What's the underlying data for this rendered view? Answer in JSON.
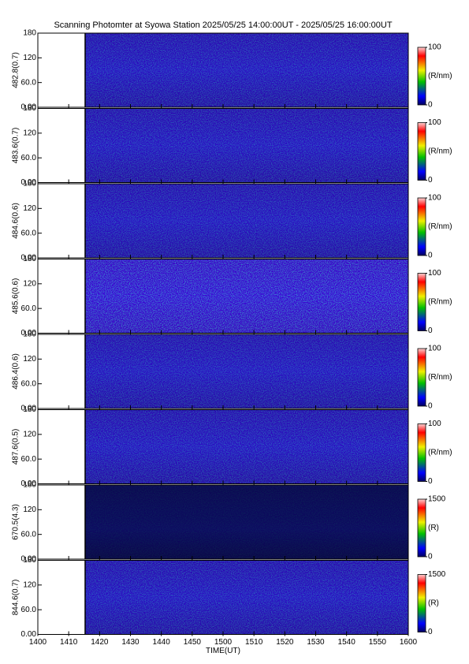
{
  "chart_data": [
    {
      "type": "heatmap",
      "title": "Scanning Photomter at Syowa Station 2025/05/25 14:00:00UT - 2025/05/25 16:00:00UT",
      "ylabel": "482.8(0.7)",
      "ylim": [
        0,
        180
      ],
      "yticks": [
        {
          "value": 0,
          "label": "0.00"
        },
        {
          "value": 60,
          "label": "60.0"
        },
        120,
        180
      ],
      "colorbar": {
        "unit": "(R/nm)",
        "lim": [
          0,
          100
        ],
        "ticks": [
          0,
          100
        ]
      }
    },
    {
      "type": "heatmap",
      "ylabel": "483.6(0.7)",
      "ylim": [
        0,
        180
      ],
      "yticks": [
        {
          "value": 0,
          "label": "0.00"
        },
        {
          "value": 60,
          "label": "60.0"
        },
        120,
        180
      ],
      "colorbar": {
        "unit": "(R/nm)",
        "lim": [
          0,
          100
        ],
        "ticks": [
          0,
          100
        ]
      }
    },
    {
      "type": "heatmap",
      "ylabel": "484.6(0.6)",
      "ylim": [
        0,
        180
      ],
      "yticks": [
        {
          "value": 0,
          "label": "0.00"
        },
        {
          "value": 60,
          "label": "60.0"
        },
        120,
        180
      ],
      "colorbar": {
        "unit": "(R/nm)",
        "lim": [
          0,
          100
        ],
        "ticks": [
          0,
          100
        ]
      }
    },
    {
      "type": "heatmap",
      "ylabel": "485.6(0.6)",
      "ylim": [
        0,
        180
      ],
      "yticks": [
        {
          "value": 0,
          "label": "0.00"
        },
        {
          "value": 60,
          "label": "60.0"
        },
        120,
        180
      ],
      "colorbar": {
        "unit": "(R/nm)",
        "lim": [
          0,
          100
        ],
        "ticks": [
          0,
          100
        ]
      }
    },
    {
      "type": "heatmap",
      "ylabel": "486.4(0.6)",
      "ylim": [
        0,
        180
      ],
      "yticks": [
        {
          "value": 0,
          "label": "0.00"
        },
        {
          "value": 60,
          "label": "60.0"
        },
        120,
        180
      ],
      "colorbar": {
        "unit": "(R/nm)",
        "lim": [
          0,
          100
        ],
        "ticks": [
          0,
          100
        ]
      }
    },
    {
      "type": "heatmap",
      "ylabel": "487.6(0.5)",
      "ylim": [
        0,
        180
      ],
      "yticks": [
        {
          "value": 0,
          "label": "0.00"
        },
        {
          "value": 60,
          "label": "60.0"
        },
        120,
        180
      ],
      "colorbar": {
        "unit": "(R/nm)",
        "lim": [
          0,
          100
        ],
        "ticks": [
          0,
          100
        ]
      }
    },
    {
      "type": "heatmap",
      "ylabel": "670.5(4.3)",
      "ylim": [
        0,
        180
      ],
      "yticks": [
        {
          "value": 0,
          "label": "0.00"
        },
        {
          "value": 60,
          "label": "60.0"
        },
        120,
        180
      ],
      "colorbar": {
        "unit": "(R)",
        "lim": [
          0,
          1500
        ],
        "ticks": [
          0,
          1500
        ]
      }
    },
    {
      "type": "heatmap",
      "ylabel": "844.6(0.7)",
      "ylim": [
        0,
        180
      ],
      "yticks": [
        {
          "value": 0,
          "label": "0.00"
        },
        {
          "value": 60,
          "label": "60.0"
        },
        120,
        180
      ],
      "colorbar": {
        "unit": "(R)",
        "lim": [
          0,
          1500
        ],
        "ticks": [
          0,
          1500
        ]
      },
      "xlabel": "TIME(UT)",
      "xlim": [
        0,
        120
      ],
      "xticks": [
        {
          "value": 0,
          "label": "1400"
        },
        {
          "value": 10,
          "label": "1410"
        },
        {
          "value": 20,
          "label": "1420"
        },
        {
          "value": 30,
          "label": "1430"
        },
        {
          "value": 40,
          "label": "1440"
        },
        {
          "value": 50,
          "label": "1450"
        },
        {
          "value": 60,
          "label": "1500"
        },
        {
          "value": 70,
          "label": "1510"
        },
        {
          "value": 80,
          "label": "1520"
        },
        {
          "value": 90,
          "label": "1530"
        },
        {
          "value": 100,
          "label": "1540"
        },
        {
          "value": 110,
          "label": "1550"
        },
        {
          "value": 120,
          "label": "1600"
        }
      ]
    }
  ]
}
